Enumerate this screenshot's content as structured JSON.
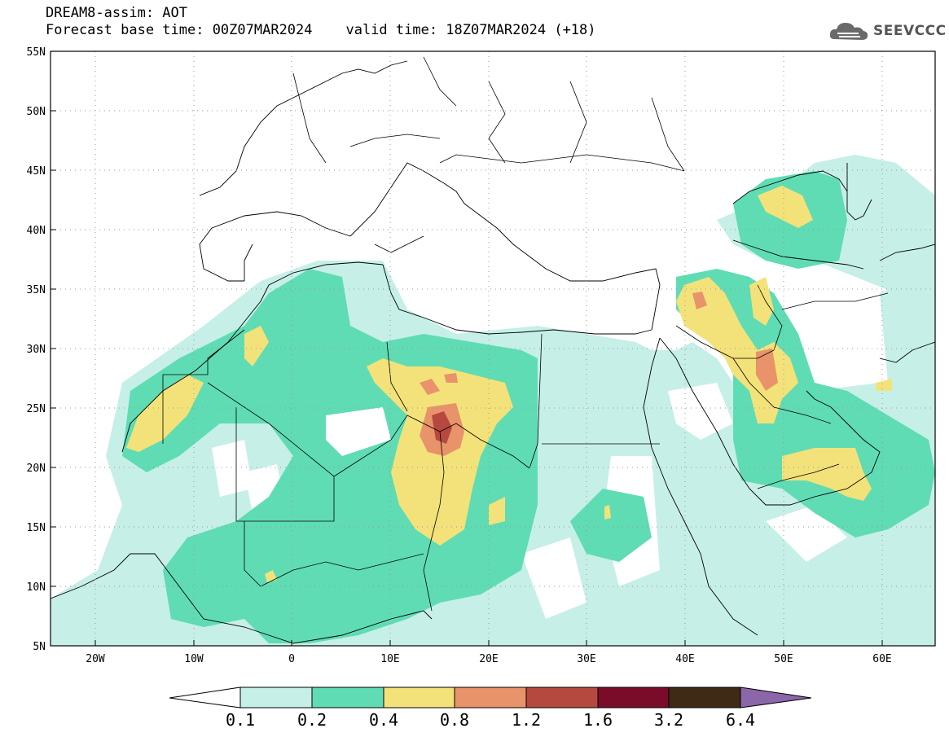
{
  "header": {
    "line1": "DREAM8-assim: AOT",
    "line2_left": "Forecast base time: 00Z07MAR2024",
    "line2_right": "valid time: 18Z07MAR2024 (+18)"
  },
  "logo": {
    "text": "SEEVCCC",
    "icon": "cloud-logo-icon"
  },
  "axes": {
    "lat_labels": [
      "55N",
      "50N",
      "45N",
      "40N",
      "35N",
      "30N",
      "25N",
      "20N",
      "15N",
      "10N",
      "5N"
    ],
    "lon_labels": [
      "20W",
      "10W",
      "0",
      "10E",
      "20E",
      "30E",
      "40E",
      "50E",
      "60E"
    ],
    "lat_range": [
      5,
      55
    ],
    "lon_range": [
      -25,
      65
    ],
    "grid": "dotted"
  },
  "colorbar": {
    "labels": [
      "0.1",
      "0.2",
      "0.4",
      "0.8",
      "1.2",
      "1.6",
      "3.2",
      "6.4"
    ],
    "colors": [
      "#ffffff",
      "#c6efe8",
      "#5fdcb3",
      "#f3e27a",
      "#e8936a",
      "#b5493f",
      "#7a0c2a",
      "#3e2a15",
      "#8b66a8"
    ]
  },
  "chart_data": {
    "type": "map",
    "title": "DREAM8-assim: AOT",
    "variable": "AOT",
    "levels": [
      0.1,
      0.2,
      0.4,
      0.8,
      1.2,
      1.6,
      3.2,
      6.4
    ],
    "hotspots": [
      {
        "lon": 15,
        "lat": 22,
        "max_level": 1.6
      },
      {
        "lon": 47.5,
        "lat": 29,
        "max_level": 1.2
      },
      {
        "lon": 41,
        "lat": 33.5,
        "max_level": 1.2
      }
    ]
  }
}
